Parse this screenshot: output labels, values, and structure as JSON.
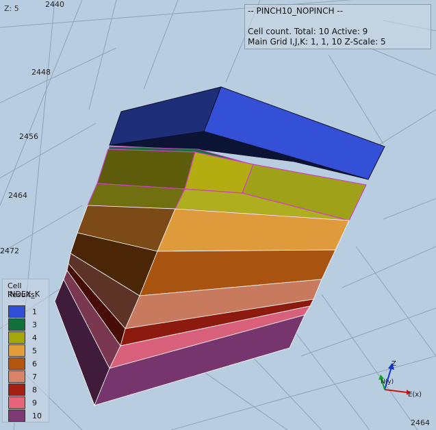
{
  "view": {
    "z_label": "Z: 5",
    "axis_ticks": [
      "2440",
      "2448",
      "2456",
      "2464",
      "2472",
      "2464"
    ]
  },
  "info": {
    "title": "-- PINCH10_NOPINCH --",
    "line1": "Cell count. Total: 10 Active: 9",
    "line2": "Main Grid I,J,K: 1, 1, 10 Z-Scale: 5"
  },
  "legend": {
    "header1": "Cell Results:",
    "header2": "INDEX_K",
    "items": [
      {
        "label": "1",
        "color": "#2f4fd9"
      },
      {
        "label": "3",
        "color": "#12703a"
      },
      {
        "label": "4",
        "color": "#a5a60c"
      },
      {
        "label": "5",
        "color": "#e39c3c"
      },
      {
        "label": "6",
        "color": "#b45610"
      },
      {
        "label": "7",
        "color": "#d8846a"
      },
      {
        "label": "8",
        "color": "#a52012"
      },
      {
        "label": "9",
        "color": "#e86479"
      },
      {
        "label": "10",
        "color": "#7d3a74"
      }
    ]
  },
  "axes_gizmo": {
    "z": "Z",
    "n": "N(y)",
    "e": "E(x)"
  }
}
